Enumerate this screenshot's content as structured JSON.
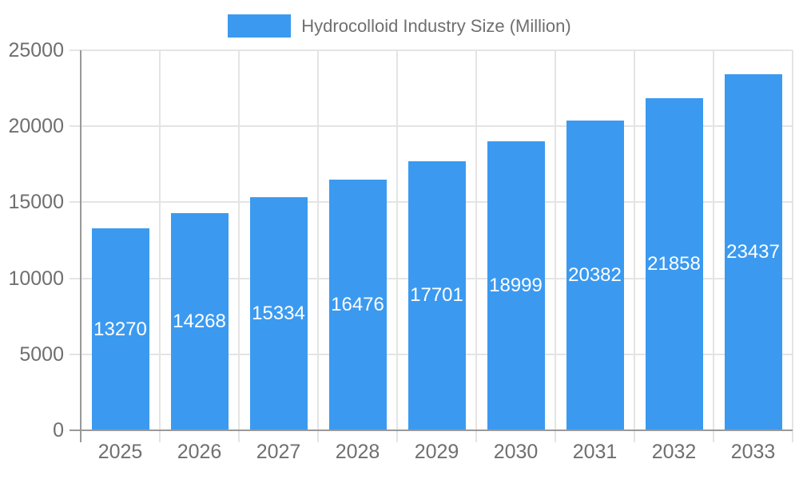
{
  "legend": {
    "label": "Hydrocolloid Industry Size (Million)"
  },
  "chart_data": {
    "type": "bar",
    "title": "Hydrocolloid Industry Size (Million)",
    "series_name": "Hydrocolloid Industry Size (Million)",
    "categories": [
      "2025",
      "2026",
      "2027",
      "2028",
      "2029",
      "2030",
      "2031",
      "2032",
      "2033"
    ],
    "values": [
      13270,
      14268,
      15334,
      16476,
      17701,
      18999,
      20382,
      21858,
      23437
    ],
    "xlabel": "",
    "ylabel": "",
    "ylim": [
      0,
      25000
    ],
    "yticks": [
      0,
      5000,
      10000,
      15000,
      20000,
      25000
    ],
    "grid": true,
    "legend_position": "top-center",
    "value_labels": "inside-center-white"
  },
  "colors": {
    "bar": "#3B9AF0",
    "axis_line": "#999999",
    "grid_line": "#E4E4E4",
    "tick_label": "#6F6F6F",
    "value_label": "#FFFFFF",
    "background": "#FFFFFF"
  }
}
